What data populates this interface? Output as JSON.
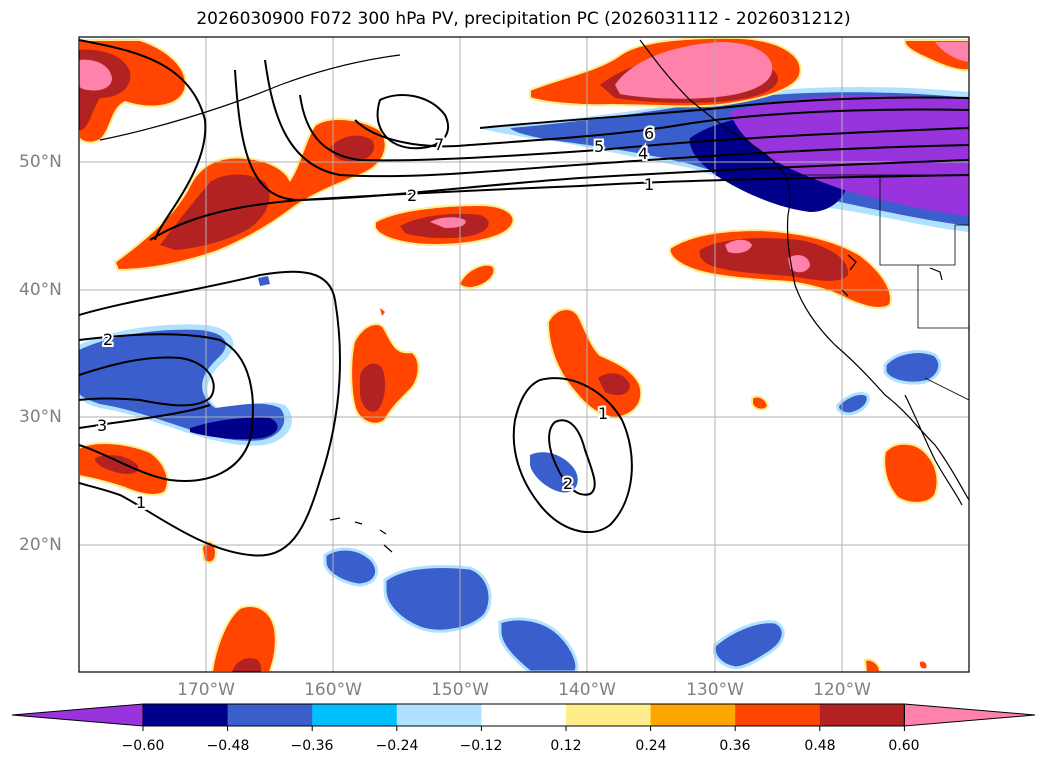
{
  "title": "2026030900 F072 300 hPa PV, precipitation PC (2026031112 - 2026031212)",
  "map": {
    "lat_labels": [
      "50°N",
      "40°N",
      "30°N",
      "20°N"
    ],
    "lon_labels": [
      "170°W",
      "160°W",
      "150°W",
      "140°W",
      "130°W",
      "120°W"
    ],
    "extent": {
      "lon_min": -180,
      "lon_max": -110,
      "lat_min": 10,
      "lat_max": 60
    },
    "contour_labels": [
      "7",
      "6",
      "5",
      "4",
      "2",
      "1",
      "2",
      "3",
      "1",
      "1",
      "2"
    ]
  },
  "colorbar": {
    "levels": [
      "−0.60",
      "−0.48",
      "−0.36",
      "−0.24",
      "−0.12",
      "0.12",
      "0.24",
      "0.36",
      "0.48",
      "0.60"
    ],
    "colors": [
      "#9933dd",
      "#00008b",
      "#3a5fcd",
      "#00bfff",
      "#b0e2ff",
      "#ffffff",
      "#ffec8b",
      "#ffa500",
      "#ff4500",
      "#b22222",
      "#ff82ab"
    ]
  }
}
